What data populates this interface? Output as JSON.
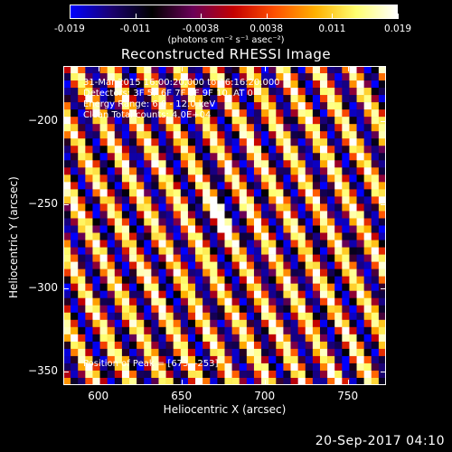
{
  "colorbar": {
    "ticks": [
      "-0.019",
      "-0.011",
      "-0.0038",
      "0.0038",
      "0.011",
      "0.019"
    ],
    "units": "(photons cm⁻² s⁻¹ asec⁻²)",
    "colormap": [
      "#0000ff",
      "#1a0070",
      "#000000",
      "#6a0058",
      "#c40000",
      "#ff5000",
      "#ffb000",
      "#ffff70",
      "#ffffff"
    ]
  },
  "title": "Reconstructed RHESSI Image",
  "annotations": {
    "line1": "31-Mar-2015 16:00:20.000 to 16:16:20.000",
    "line2": "Detectors: 3F 5F 6F 7F 8F 9F 10, AT 0",
    "line3": "Energy Range: 6.0 - 12.0 keV",
    "line4": "Clean    Total counts: 4.0E+04",
    "peak": "Position of Peak = [673, -253]"
  },
  "timestamp": "20-Sep-2017 04:10",
  "chart_data": {
    "type": "heatmap",
    "title": "Reconstructed RHESSI Image",
    "xlabel": "Heliocentric X (arcsec)",
    "ylabel": "Heliocentric Y (arcsec)",
    "xlim": [
      579,
      773
    ],
    "ylim": [
      -358,
      -167
    ],
    "xticks": [
      600,
      650,
      700,
      750
    ],
    "yticks": [
      -350,
      -300,
      -250,
      -200
    ],
    "value_range": [
      -0.019,
      0.019
    ],
    "pattern": "diagonal-stripes",
    "peak": [
      673,
      -253
    ]
  }
}
